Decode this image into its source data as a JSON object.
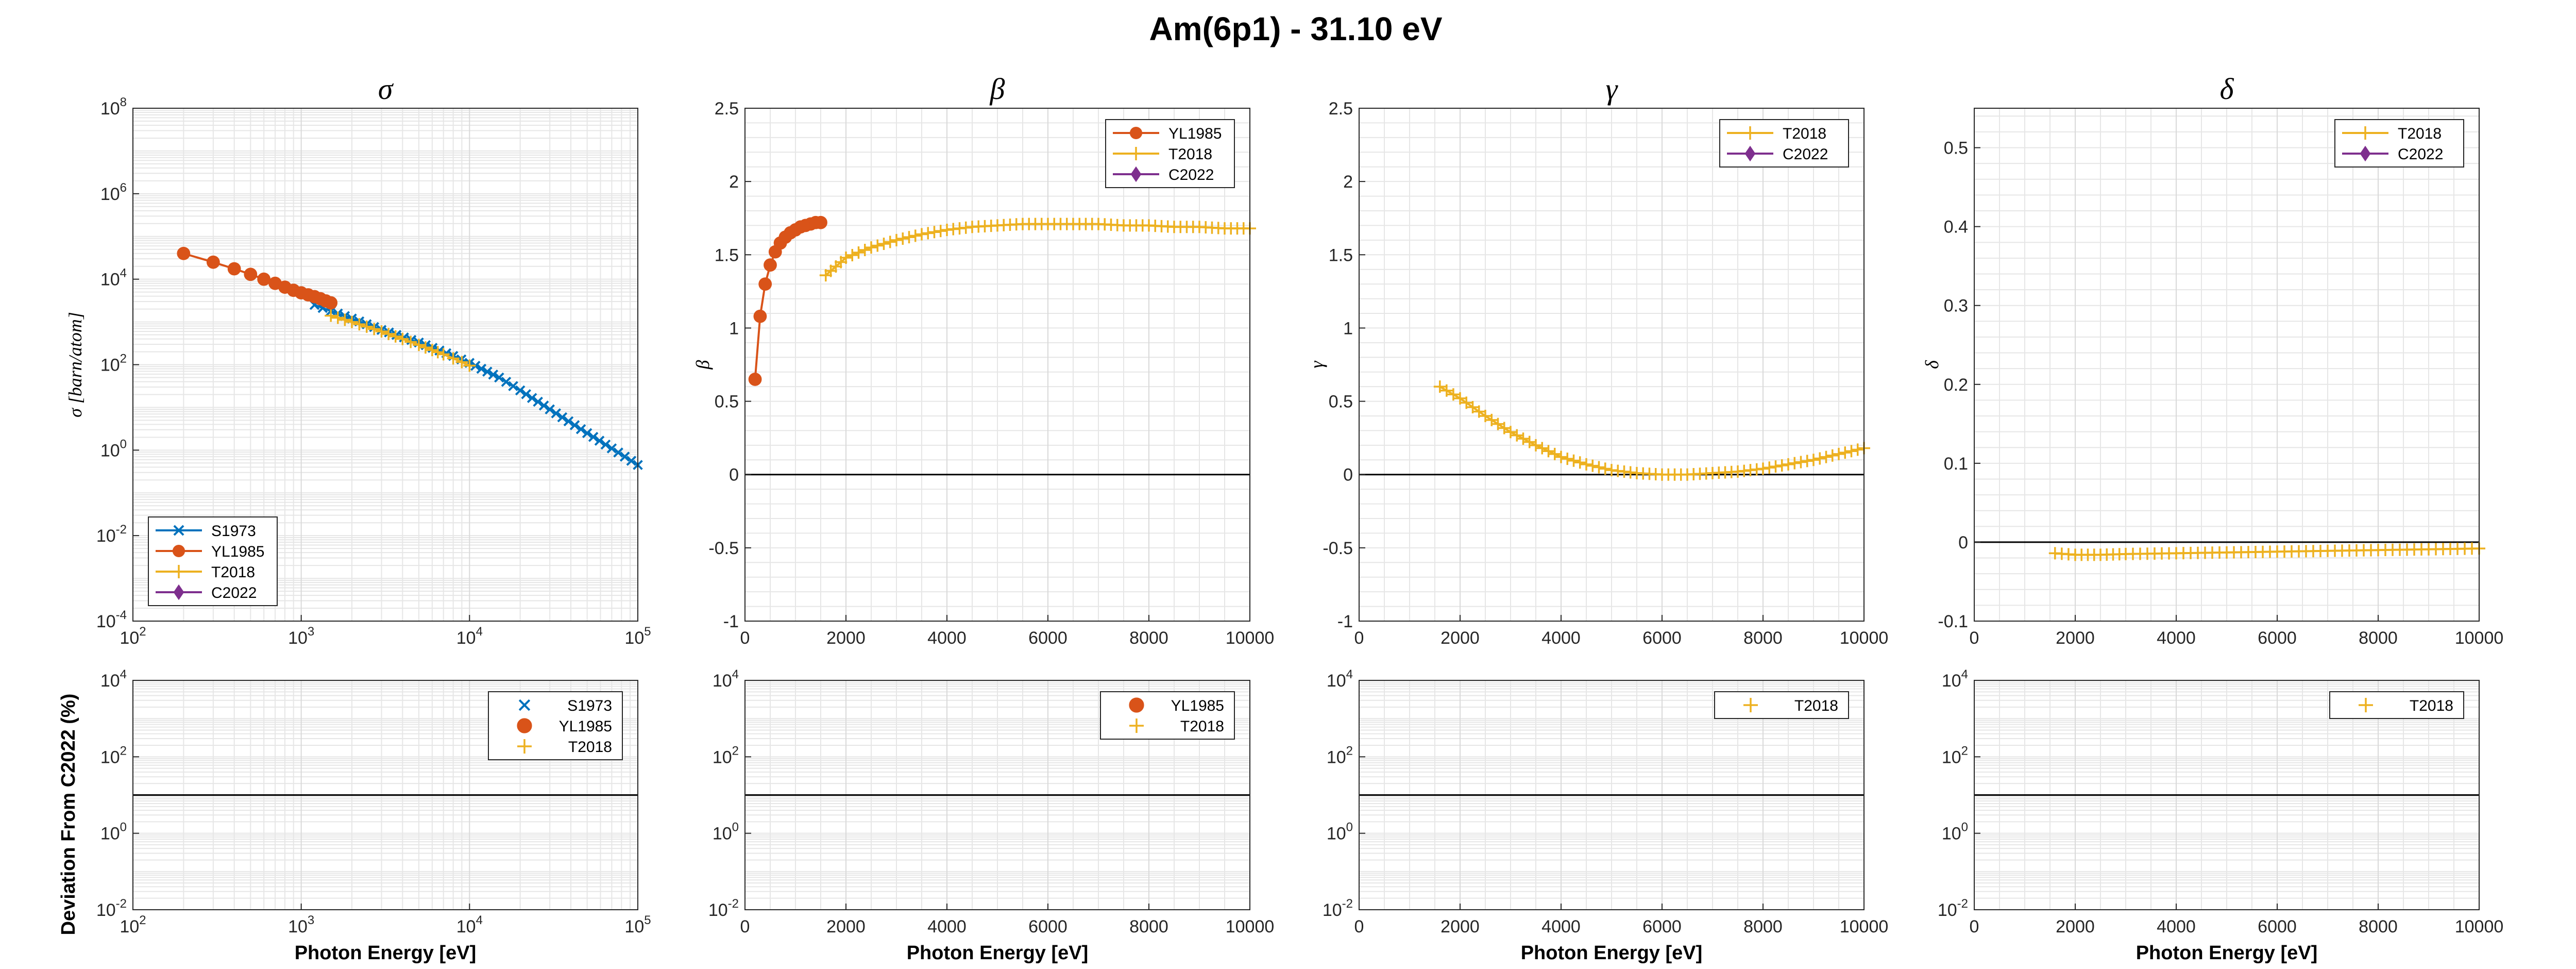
{
  "title": "Am(6p1) - 31.10 eV",
  "xlabel": "Photon Energy [eV]",
  "deviation_ylabel": "Deviation From C2022 (%)",
  "colors": {
    "S1973": "#0072BD",
    "YL1985": "#D95319",
    "T2018": "#EDB120",
    "C2022": "#7E2F8E",
    "grid": "#e6e6e6",
    "axis": "#262626"
  },
  "chart_data": [
    {
      "id": "sigma",
      "type": "line",
      "title": "σ",
      "ylabel": "σ [barn/atom]",
      "xscale": "log",
      "yscale": "log",
      "xlim": [
        100,
        100000
      ],
      "ylim": [
        0.0001,
        100000000
      ],
      "xticks": [
        {
          "v": 100,
          "b": "10",
          "e": "2"
        },
        {
          "v": 1000,
          "b": "10",
          "e": "3"
        },
        {
          "v": 10000,
          "b": "10",
          "e": "4"
        },
        {
          "v": 100000,
          "b": "10",
          "e": "5"
        }
      ],
      "yticks": [
        {
          "v": 0.0001,
          "b": "10",
          "e": "-4"
        },
        {
          "v": 0.01,
          "b": "10",
          "e": "-2"
        },
        {
          "v": 1,
          "b": "10",
          "e": "0"
        },
        {
          "v": 100,
          "b": "10",
          "e": "2"
        },
        {
          "v": 10000,
          "b": "10",
          "e": "4"
        },
        {
          "v": 1000000,
          "b": "10",
          "e": "6"
        },
        {
          "v": 100000000,
          "b": "10",
          "e": "8"
        }
      ],
      "legend": {
        "location": "bottom-left",
        "entries": [
          "S1973",
          "YL1985",
          "T2018",
          "C2022"
        ]
      },
      "series": [
        {
          "name": "S1973",
          "marker": "x",
          "x": [
            1200,
            1500,
            2000,
            3000,
            5000,
            8000,
            10000,
            15000,
            20000,
            30000,
            50000,
            70000,
            100000
          ],
          "y": [
            2500,
            1800,
            1200,
            650,
            330,
            160,
            110,
            50,
            25,
            9,
            2.5,
            1.1,
            0.45
          ]
        },
        {
          "name": "YL1985",
          "marker": "circle",
          "x": [
            200,
            300,
            400,
            500,
            600,
            700,
            800,
            900,
            1000,
            1100,
            1200,
            1300,
            1400,
            1500
          ],
          "y": [
            40000,
            25000,
            17500,
            13000,
            10000,
            8000,
            6500,
            5500,
            4800,
            4300,
            3900,
            3500,
            3100,
            2800
          ]
        },
        {
          "name": "T2018",
          "marker": "plus",
          "x": [
            1500,
            2000,
            3000,
            4000,
            5000,
            6000,
            7000,
            8000,
            9000,
            10000
          ],
          "y": [
            1400,
            1000,
            600,
            400,
            290,
            220,
            175,
            140,
            115,
            95
          ]
        }
      ]
    },
    {
      "id": "beta",
      "type": "line",
      "title": "β",
      "ylabel": "β",
      "xscale": "linear",
      "yscale": "linear",
      "xlim": [
        0,
        10000
      ],
      "ylim": [
        -1,
        2.5
      ],
      "xticks": [
        0,
        2000,
        4000,
        6000,
        8000,
        10000
      ],
      "yticks": [
        -1,
        -0.5,
        0,
        0.5,
        1,
        1.5,
        2,
        2.5
      ],
      "zero_line": true,
      "legend": {
        "location": "top-right",
        "entries": [
          "YL1985",
          "T2018",
          "C2022"
        ]
      },
      "series": [
        {
          "name": "YL1985",
          "marker": "circle",
          "x": [
            200,
            300,
            400,
            500,
            600,
            700,
            800,
            900,
            1000,
            1100,
            1200,
            1300,
            1400,
            1500
          ],
          "y": [
            0.65,
            1.08,
            1.3,
            1.43,
            1.52,
            1.58,
            1.62,
            1.65,
            1.67,
            1.69,
            1.7,
            1.71,
            1.72,
            1.72
          ]
        },
        {
          "name": "T2018",
          "marker": "plus",
          "x": [
            1600,
            1800,
            2000,
            2500,
            3000,
            3500,
            4000,
            4500,
            5000,
            5500,
            6000,
            6500,
            7000,
            7500,
            8000,
            8500,
            9000,
            9500,
            10000
          ],
          "y": [
            1.36,
            1.42,
            1.48,
            1.55,
            1.6,
            1.64,
            1.67,
            1.69,
            1.7,
            1.71,
            1.71,
            1.71,
            1.71,
            1.7,
            1.7,
            1.69,
            1.69,
            1.68,
            1.68
          ]
        }
      ]
    },
    {
      "id": "gamma",
      "type": "line",
      "title": "γ",
      "ylabel": "γ",
      "xscale": "linear",
      "yscale": "linear",
      "xlim": [
        0,
        10000
      ],
      "ylim": [
        -1,
        2.5
      ],
      "xticks": [
        0,
        2000,
        4000,
        6000,
        8000,
        10000
      ],
      "yticks": [
        -1,
        -0.5,
        0,
        0.5,
        1,
        1.5,
        2,
        2.5
      ],
      "zero_line": true,
      "legend": {
        "location": "top-right",
        "entries": [
          "T2018",
          "C2022"
        ]
      },
      "series": [
        {
          "name": "T2018",
          "marker": "plus",
          "x": [
            1600,
            2000,
            2500,
            3000,
            3500,
            4000,
            4500,
            5000,
            5500,
            6000,
            6500,
            7000,
            7500,
            8000,
            8500,
            9000,
            9500,
            10000
          ],
          "y": [
            0.6,
            0.52,
            0.4,
            0.29,
            0.2,
            0.12,
            0.07,
            0.03,
            0.01,
            0.0,
            0.0,
            0.01,
            0.02,
            0.04,
            0.07,
            0.1,
            0.14,
            0.18
          ]
        }
      ]
    },
    {
      "id": "delta",
      "type": "line",
      "title": "δ",
      "ylabel": "δ",
      "xscale": "linear",
      "yscale": "linear",
      "xlim": [
        0,
        10000
      ],
      "ylim": [
        -0.1,
        0.55
      ],
      "xticks": [
        0,
        2000,
        4000,
        6000,
        8000,
        10000
      ],
      "yticks": [
        -0.1,
        0,
        0.1,
        0.2,
        0.3,
        0.4,
        0.5
      ],
      "zero_line": true,
      "legend": {
        "location": "top-right",
        "entries": [
          "T2018",
          "C2022"
        ]
      },
      "series": [
        {
          "name": "T2018",
          "marker": "plus",
          "x": [
            1600,
            2000,
            2500,
            3000,
            4000,
            5000,
            6000,
            7000,
            8000,
            9000,
            10000
          ],
          "y": [
            -0.014,
            -0.016,
            -0.016,
            -0.015,
            -0.014,
            -0.013,
            -0.012,
            -0.011,
            -0.01,
            -0.009,
            -0.008
          ]
        }
      ]
    },
    {
      "id": "dev-sigma",
      "type": "line",
      "title": "",
      "ylabel": "Deviation From C2022 (%)",
      "xscale": "log",
      "yscale": "log",
      "xlim": [
        100,
        100000
      ],
      "ylim": [
        0.01,
        10000
      ],
      "xticks": [
        {
          "v": 100,
          "b": "10",
          "e": "2"
        },
        {
          "v": 1000,
          "b": "10",
          "e": "3"
        },
        {
          "v": 10000,
          "b": "10",
          "e": "4"
        },
        {
          "v": 100000,
          "b": "10",
          "e": "5"
        }
      ],
      "yticks": [
        {
          "v": 0.01,
          "b": "10",
          "e": "-2"
        },
        {
          "v": 1,
          "b": "10",
          "e": "0"
        },
        {
          "v": 100,
          "b": "10",
          "e": "2"
        },
        {
          "v": 10000,
          "b": "10",
          "e": "4"
        }
      ],
      "ref_line": 10,
      "legend": {
        "location": "top-right",
        "entries": [
          "S1973",
          "YL1985",
          "T2018"
        ],
        "markers_only": true
      },
      "series": []
    },
    {
      "id": "dev-beta",
      "type": "line",
      "title": "",
      "ylabel": "",
      "xscale": "linear",
      "yscale": "log",
      "xlim": [
        0,
        10000
      ],
      "ylim": [
        0.01,
        10000
      ],
      "xticks": [
        0,
        2000,
        4000,
        6000,
        8000,
        10000
      ],
      "yticks": [
        {
          "v": 0.01,
          "b": "10",
          "e": "-2"
        },
        {
          "v": 1,
          "b": "10",
          "e": "0"
        },
        {
          "v": 100,
          "b": "10",
          "e": "2"
        },
        {
          "v": 10000,
          "b": "10",
          "e": "4"
        }
      ],
      "ref_line": 10,
      "legend": {
        "location": "top-right",
        "entries": [
          "YL1985",
          "T2018"
        ],
        "markers_only": true
      },
      "series": []
    },
    {
      "id": "dev-gamma",
      "type": "line",
      "title": "",
      "ylabel": "",
      "xscale": "linear",
      "yscale": "log",
      "xlim": [
        0,
        10000
      ],
      "ylim": [
        0.01,
        10000
      ],
      "xticks": [
        0,
        2000,
        4000,
        6000,
        8000,
        10000
      ],
      "yticks": [
        {
          "v": 0.01,
          "b": "10",
          "e": "-2"
        },
        {
          "v": 1,
          "b": "10",
          "e": "0"
        },
        {
          "v": 100,
          "b": "10",
          "e": "2"
        },
        {
          "v": 10000,
          "b": "10",
          "e": "4"
        }
      ],
      "ref_line": 10,
      "legend": {
        "location": "top-right",
        "entries": [
          "T2018"
        ],
        "markers_only": true
      },
      "series": []
    },
    {
      "id": "dev-delta",
      "type": "line",
      "title": "",
      "ylabel": "",
      "xscale": "linear",
      "yscale": "log",
      "xlim": [
        0,
        10000
      ],
      "ylim": [
        0.01,
        10000
      ],
      "xticks": [
        0,
        2000,
        4000,
        6000,
        8000,
        10000
      ],
      "yticks": [
        {
          "v": 0.01,
          "b": "10",
          "e": "-2"
        },
        {
          "v": 1,
          "b": "10",
          "e": "0"
        },
        {
          "v": 100,
          "b": "10",
          "e": "2"
        },
        {
          "v": 10000,
          "b": "10",
          "e": "4"
        }
      ],
      "ref_line": 10,
      "legend": {
        "location": "top-right",
        "entries": [
          "T2018"
        ],
        "markers_only": true
      },
      "series": []
    }
  ]
}
